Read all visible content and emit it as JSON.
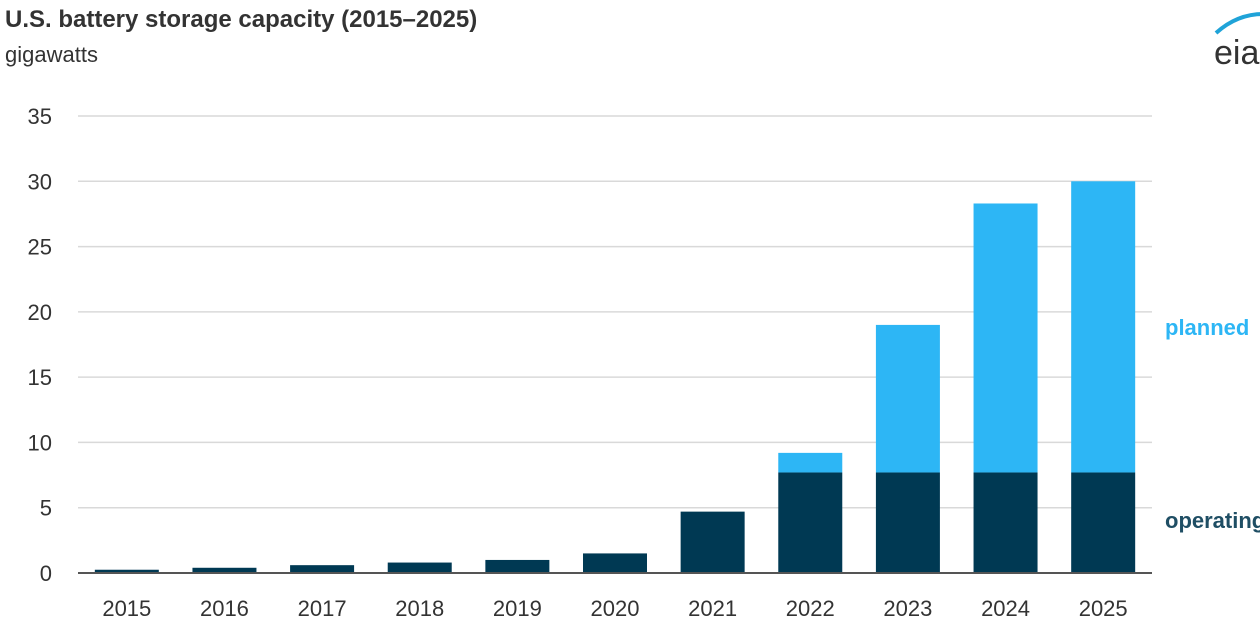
{
  "chart_data": {
    "type": "bar",
    "stacked": true,
    "title": "U.S. battery storage capacity (2015–2025)",
    "ylabel": "gigawatts",
    "ylim": [
      0,
      35
    ],
    "yticks": [
      0,
      5,
      10,
      15,
      20,
      25,
      30,
      35
    ],
    "grid": true,
    "categories": [
      "2015",
      "2016",
      "2017",
      "2018",
      "2019",
      "2020",
      "2021",
      "2022",
      "2023",
      "2024",
      "2025"
    ],
    "series": [
      {
        "name": "operating",
        "color": "#003953",
        "values": [
          0.25,
          0.4,
          0.6,
          0.8,
          1.0,
          1.5,
          4.7,
          7.7,
          7.7,
          7.7,
          7.7
        ]
      },
      {
        "name": "planned",
        "color": "#2db6f5",
        "values": [
          0,
          0,
          0,
          0,
          0,
          0,
          0,
          1.5,
          11.3,
          20.6,
          22.3
        ]
      }
    ],
    "legend": "right (direct labels)"
  },
  "logo": {
    "text": "eia"
  }
}
